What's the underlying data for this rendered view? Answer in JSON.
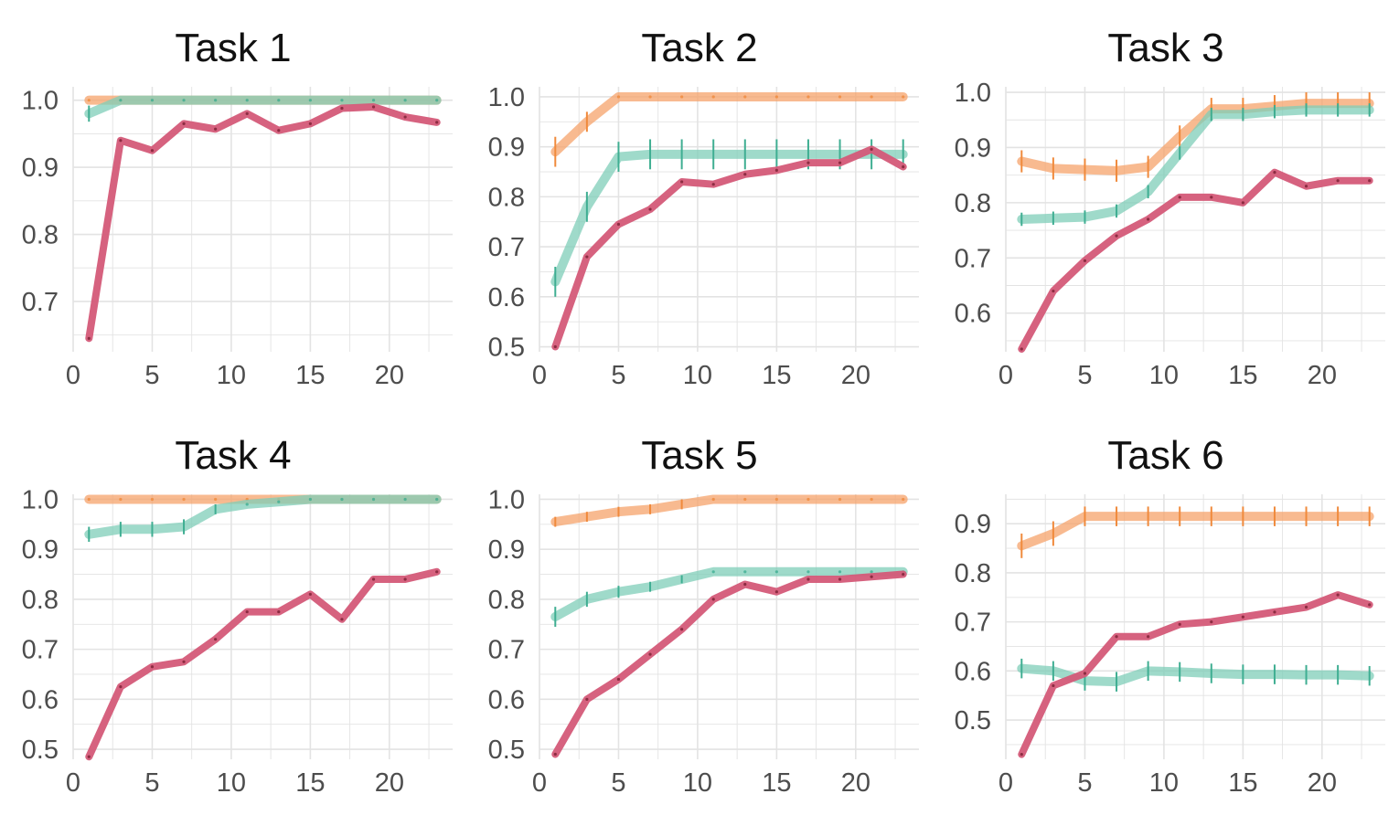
{
  "colors": {
    "orange": "#f5a36b",
    "teal": "#7fcdb8",
    "red": "#d45a78",
    "orange_err": "#f08a3c",
    "teal_err": "#3fae92",
    "grid": "#e3e3e3",
    "tick_text": "#4d4d4d"
  },
  "chart_data": [
    {
      "type": "line",
      "title": "Task 1",
      "xlabel": "",
      "ylabel": "",
      "xlim": [
        0,
        24
      ],
      "ylim": [
        0.625,
        1.02
      ],
      "xticks": [
        0,
        5,
        10,
        15,
        20
      ],
      "yticks": [
        0.7,
        0.8,
        0.9,
        1.0
      ],
      "ytick_labels": [
        "0.7",
        "0.8",
        "0.9",
        "1.0"
      ],
      "x": [
        1,
        3,
        5,
        7,
        9,
        11,
        13,
        15,
        17,
        19,
        21,
        23
      ],
      "series": [
        {
          "name": "orange",
          "color": "#f5a36b",
          "err_color": "#f08a3c",
          "width": 10,
          "values": [
            1.0,
            1.0,
            1.0,
            1.0,
            1.0,
            1.0,
            1.0,
            1.0,
            1.0,
            1.0,
            1.0,
            1.0
          ],
          "errors": [
            0,
            0,
            0,
            0,
            0,
            0,
            0,
            0,
            0,
            0,
            0,
            0
          ]
        },
        {
          "name": "teal",
          "color": "#7fcdb8",
          "err_color": "#3fae92",
          "width": 10,
          "values": [
            0.98,
            1.0,
            1.0,
            1.0,
            1.0,
            1.0,
            1.0,
            1.0,
            1.0,
            1.0,
            1.0,
            1.0
          ],
          "errors": [
            0.012,
            0,
            0,
            0,
            0,
            0,
            0,
            0,
            0,
            0,
            0,
            0
          ]
        },
        {
          "name": "red",
          "color": "#d45a78",
          "err_color": "#7a1f33",
          "width": 8,
          "values": [
            0.645,
            0.94,
            0.925,
            0.965,
            0.957,
            0.98,
            0.955,
            0.965,
            0.988,
            0.99,
            0.975,
            0.967
          ],
          "errors": [
            0,
            0,
            0,
            0,
            0,
            0,
            0,
            0,
            0,
            0,
            0,
            0
          ]
        }
      ]
    },
    {
      "type": "line",
      "title": "Task 2",
      "xlabel": "",
      "ylabel": "",
      "xlim": [
        0,
        24
      ],
      "ylim": [
        0.49,
        1.02
      ],
      "xticks": [
        0,
        5,
        10,
        15,
        20
      ],
      "yticks": [
        0.5,
        0.6,
        0.7,
        0.8,
        0.9,
        1.0
      ],
      "ytick_labels": [
        "0.5",
        "0.6",
        "0.7",
        "0.8",
        "0.9",
        "1.0"
      ],
      "x": [
        1,
        3,
        5,
        7,
        9,
        11,
        13,
        15,
        17,
        19,
        21,
        23
      ],
      "series": [
        {
          "name": "orange",
          "color": "#f5a36b",
          "err_color": "#f08a3c",
          "width": 10,
          "values": [
            0.89,
            0.95,
            1.0,
            1.0,
            1.0,
            1.0,
            1.0,
            1.0,
            1.0,
            1.0,
            1.0,
            1.0
          ],
          "errors": [
            0.03,
            0.02,
            0,
            0,
            0,
            0,
            0,
            0,
            0,
            0,
            0,
            0
          ]
        },
        {
          "name": "teal",
          "color": "#7fcdb8",
          "err_color": "#3fae92",
          "width": 10,
          "values": [
            0.63,
            0.78,
            0.88,
            0.885,
            0.885,
            0.885,
            0.885,
            0.885,
            0.885,
            0.885,
            0.885,
            0.885
          ],
          "errors": [
            0.03,
            0.03,
            0.03,
            0.03,
            0.03,
            0.03,
            0.03,
            0.03,
            0.03,
            0.03,
            0.03,
            0.03
          ]
        },
        {
          "name": "red",
          "color": "#d45a78",
          "err_color": "#7a1f33",
          "width": 8,
          "values": [
            0.5,
            0.68,
            0.745,
            0.775,
            0.83,
            0.825,
            0.845,
            0.853,
            0.868,
            0.868,
            0.895,
            0.86
          ],
          "errors": [
            0,
            0,
            0,
            0,
            0,
            0,
            0,
            0,
            0,
            0,
            0,
            0
          ]
        }
      ]
    },
    {
      "type": "line",
      "title": "Task 3",
      "xlabel": "",
      "ylabel": "",
      "xlim": [
        0,
        24
      ],
      "ylim": [
        0.53,
        1.01
      ],
      "xticks": [
        0,
        5,
        10,
        15,
        20
      ],
      "yticks": [
        0.6,
        0.7,
        0.8,
        0.9,
        1.0
      ],
      "ytick_labels": [
        "0.6",
        "0.7",
        "0.8",
        "0.9",
        "1.0"
      ],
      "x": [
        1,
        3,
        5,
        7,
        9,
        11,
        13,
        15,
        17,
        19,
        21,
        23
      ],
      "series": [
        {
          "name": "orange",
          "color": "#f5a36b",
          "err_color": "#f08a3c",
          "width": 10,
          "values": [
            0.875,
            0.862,
            0.86,
            0.858,
            0.865,
            0.92,
            0.97,
            0.97,
            0.975,
            0.98,
            0.98,
            0.98
          ],
          "errors": [
            0.02,
            0.02,
            0.02,
            0.02,
            0.02,
            0.02,
            0.02,
            0.02,
            0.02,
            0.02,
            0.02,
            0.02
          ]
        },
        {
          "name": "teal",
          "color": "#7fcdb8",
          "err_color": "#3fae92",
          "width": 10,
          "values": [
            0.77,
            0.772,
            0.774,
            0.785,
            0.82,
            0.89,
            0.96,
            0.96,
            0.965,
            0.968,
            0.968,
            0.968
          ],
          "errors": [
            0.012,
            0.012,
            0.012,
            0.012,
            0.012,
            0.012,
            0.012,
            0.012,
            0.012,
            0.012,
            0.012,
            0.012
          ]
        },
        {
          "name": "red",
          "color": "#d45a78",
          "err_color": "#7a1f33",
          "width": 8,
          "values": [
            0.535,
            0.64,
            0.695,
            0.74,
            0.77,
            0.81,
            0.81,
            0.8,
            0.855,
            0.83,
            0.84,
            0.84
          ],
          "errors": [
            0,
            0,
            0,
            0,
            0,
            0,
            0,
            0,
            0,
            0,
            0,
            0
          ]
        }
      ]
    },
    {
      "type": "line",
      "title": "Task 4",
      "xlabel": "",
      "ylabel": "",
      "xlim": [
        0,
        24
      ],
      "ylim": [
        0.48,
        1.01
      ],
      "xticks": [
        0,
        5,
        10,
        15,
        20
      ],
      "yticks": [
        0.5,
        0.6,
        0.7,
        0.8,
        0.9,
        1.0
      ],
      "ytick_labels": [
        "0.5",
        "0.6",
        "0.7",
        "0.8",
        "0.9",
        "1.0"
      ],
      "x": [
        1,
        3,
        5,
        7,
        9,
        11,
        13,
        15,
        17,
        19,
        21,
        23
      ],
      "series": [
        {
          "name": "orange",
          "color": "#f5a36b",
          "err_color": "#f08a3c",
          "width": 10,
          "values": [
            1.0,
            1.0,
            1.0,
            1.0,
            1.0,
            1.0,
            1.0,
            1.0,
            1.0,
            1.0,
            1.0,
            1.0
          ],
          "errors": [
            0,
            0,
            0,
            0,
            0,
            0,
            0,
            0,
            0,
            0,
            0,
            0
          ]
        },
        {
          "name": "teal",
          "color": "#7fcdb8",
          "err_color": "#3fae92",
          "width": 10,
          "values": [
            0.93,
            0.94,
            0.94,
            0.945,
            0.98,
            0.99,
            0.995,
            1.0,
            1.0,
            1.0,
            1.0,
            1.0
          ],
          "errors": [
            0.015,
            0.015,
            0.015,
            0.015,
            0.01,
            0,
            0,
            0,
            0,
            0,
            0,
            0
          ]
        },
        {
          "name": "red",
          "color": "#d45a78",
          "err_color": "#7a1f33",
          "width": 8,
          "values": [
            0.485,
            0.625,
            0.665,
            0.675,
            0.72,
            0.775,
            0.775,
            0.81,
            0.76,
            0.84,
            0.84,
            0.855
          ],
          "errors": [
            0,
            0,
            0,
            0,
            0,
            0,
            0,
            0,
            0,
            0,
            0,
            0
          ]
        }
      ]
    },
    {
      "type": "line",
      "title": "Task 5",
      "xlabel": "",
      "ylabel": "",
      "xlim": [
        0,
        24
      ],
      "ylim": [
        0.48,
        1.01
      ],
      "xticks": [
        0,
        5,
        10,
        15,
        20
      ],
      "yticks": [
        0.5,
        0.6,
        0.7,
        0.8,
        0.9,
        1.0
      ],
      "ytick_labels": [
        "0.5",
        "0.6",
        "0.7",
        "0.8",
        "0.9",
        "1.0"
      ],
      "x": [
        1,
        3,
        5,
        7,
        9,
        11,
        13,
        15,
        17,
        19,
        21,
        23
      ],
      "series": [
        {
          "name": "orange",
          "color": "#f5a36b",
          "err_color": "#f08a3c",
          "width": 10,
          "values": [
            0.955,
            0.965,
            0.975,
            0.98,
            0.99,
            1.0,
            1.0,
            1.0,
            1.0,
            1.0,
            1.0,
            1.0
          ],
          "errors": [
            0.01,
            0.01,
            0.01,
            0.01,
            0.01,
            0,
            0,
            0,
            0,
            0,
            0,
            0
          ]
        },
        {
          "name": "teal",
          "color": "#7fcdb8",
          "err_color": "#3fae92",
          "width": 10,
          "values": [
            0.765,
            0.8,
            0.815,
            0.825,
            0.84,
            0.855,
            0.855,
            0.855,
            0.855,
            0.855,
            0.855,
            0.855
          ],
          "errors": [
            0.02,
            0.015,
            0.012,
            0.01,
            0.008,
            0,
            0,
            0,
            0,
            0,
            0,
            0
          ]
        },
        {
          "name": "red",
          "color": "#d45a78",
          "err_color": "#7a1f33",
          "width": 8,
          "values": [
            0.49,
            0.6,
            0.64,
            0.69,
            0.74,
            0.8,
            0.83,
            0.815,
            0.84,
            0.84,
            0.845,
            0.85
          ],
          "errors": [
            0,
            0,
            0,
            0,
            0,
            0,
            0,
            0,
            0,
            0,
            0,
            0
          ]
        }
      ]
    },
    {
      "type": "line",
      "title": "Task 6",
      "xlabel": "",
      "ylabel": "",
      "xlim": [
        0,
        24
      ],
      "ylim": [
        0.42,
        0.96
      ],
      "xticks": [
        0,
        5,
        10,
        15,
        20
      ],
      "yticks": [
        0.5,
        0.6,
        0.7,
        0.8,
        0.9
      ],
      "ytick_labels": [
        "0.5",
        "0.6",
        "0.7",
        "0.8",
        "0.9"
      ],
      "x": [
        1,
        3,
        5,
        7,
        9,
        11,
        13,
        15,
        17,
        19,
        21,
        23
      ],
      "series": [
        {
          "name": "orange",
          "color": "#f5a36b",
          "err_color": "#f08a3c",
          "width": 10,
          "values": [
            0.855,
            0.88,
            0.915,
            0.915,
            0.915,
            0.915,
            0.915,
            0.915,
            0.915,
            0.915,
            0.915,
            0.915
          ],
          "errors": [
            0.025,
            0.025,
            0.02,
            0.02,
            0.02,
            0.02,
            0.02,
            0.02,
            0.02,
            0.02,
            0.02,
            0.02
          ]
        },
        {
          "name": "teal",
          "color": "#7fcdb8",
          "err_color": "#3fae92",
          "width": 10,
          "values": [
            0.605,
            0.6,
            0.58,
            0.578,
            0.6,
            0.598,
            0.595,
            0.593,
            0.593,
            0.592,
            0.592,
            0.59
          ],
          "errors": [
            0.02,
            0.02,
            0.02,
            0.02,
            0.02,
            0.02,
            0.02,
            0.02,
            0.02,
            0.02,
            0.02,
            0.02
          ]
        },
        {
          "name": "red",
          "color": "#d45a78",
          "err_color": "#7a1f33",
          "width": 8,
          "values": [
            0.43,
            0.57,
            0.595,
            0.67,
            0.67,
            0.695,
            0.7,
            0.71,
            0.72,
            0.73,
            0.755,
            0.735
          ],
          "errors": [
            0,
            0,
            0,
            0,
            0,
            0,
            0,
            0,
            0,
            0,
            0,
            0
          ]
        }
      ]
    }
  ]
}
